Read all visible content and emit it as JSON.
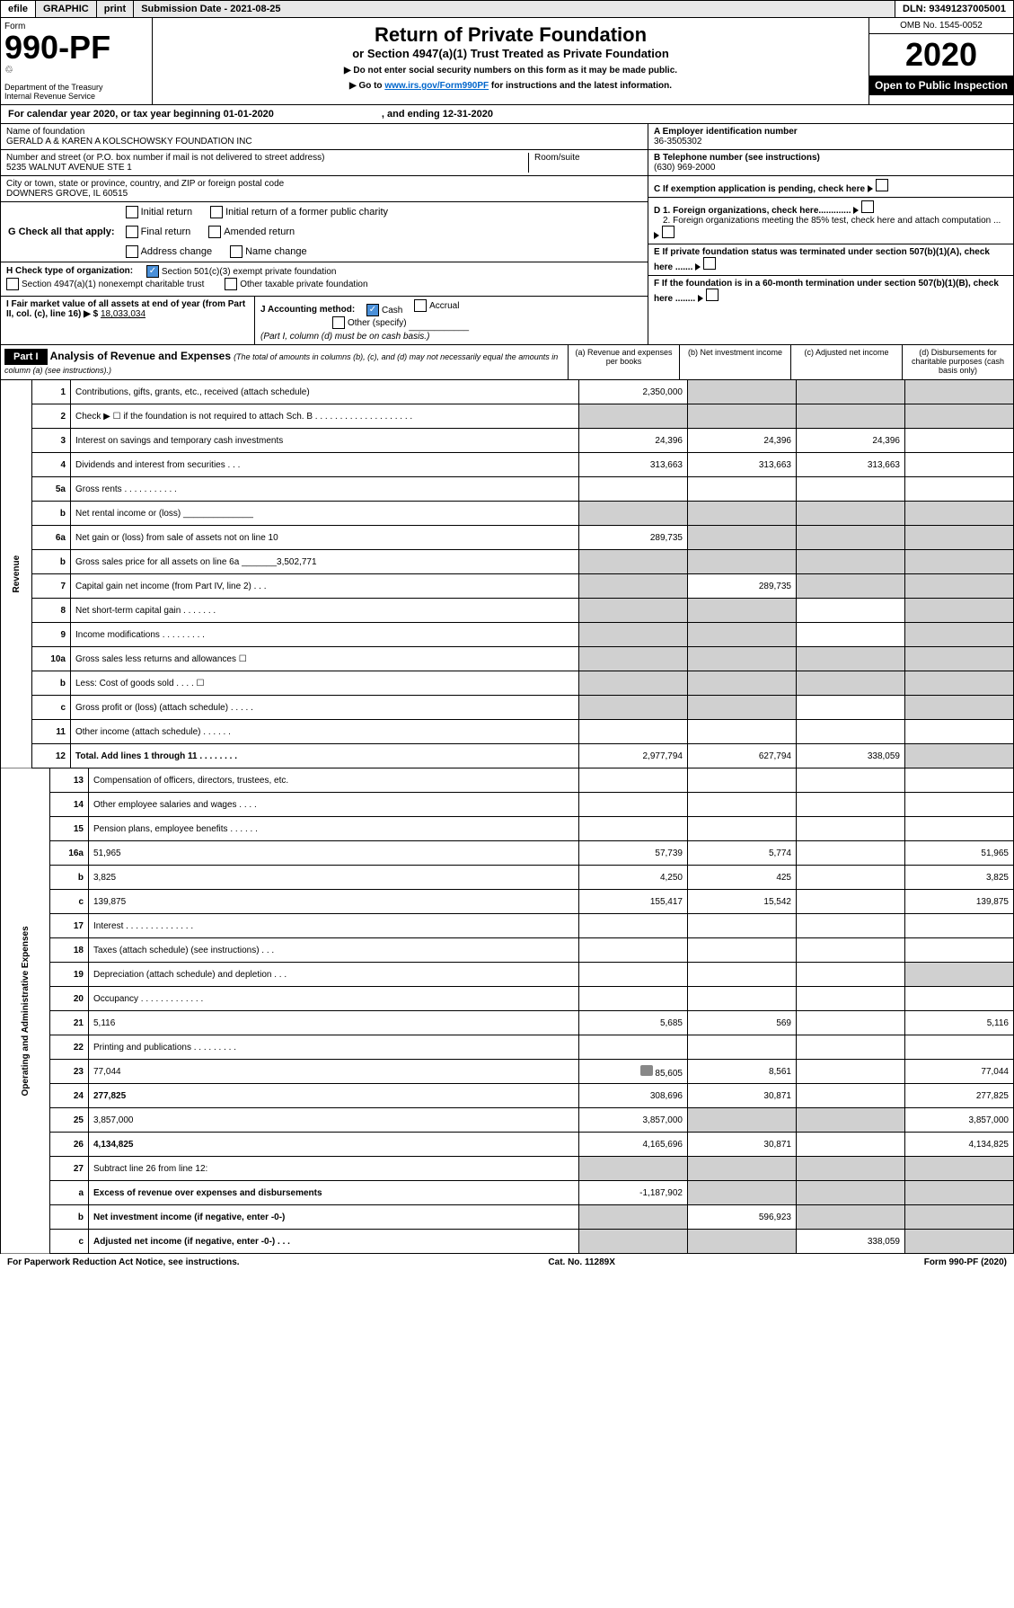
{
  "topbar": {
    "efile": "efile",
    "graphic": "GRAPHIC",
    "print": "print",
    "subdate": "Submission Date - 2021-08-25",
    "dln": "DLN: 93491237005001"
  },
  "header": {
    "form_label": "Form",
    "form_num": "990-PF",
    "dept": "Department of the Treasury\nInternal Revenue Service",
    "title": "Return of Private Foundation",
    "subtitle": "or Section 4947(a)(1) Trust Treated as Private Foundation",
    "note1": "▶ Do not enter social security numbers on this form as it may be made public.",
    "note2": "▶ Go to ",
    "link": "www.irs.gov/Form990PF",
    "note3": " for instructions and the latest information.",
    "omb": "OMB No. 1545-0052",
    "year": "2020",
    "open": "Open to Public Inspection"
  },
  "cal": {
    "a": "For calendar year 2020, or tax year beginning 01-01-2020",
    "b": ", and ending 12-31-2020"
  },
  "info": {
    "name_label": "Name of foundation",
    "name": "GERALD A & KAREN A KOLSCHOWSKY FOUNDATION INC",
    "addr_label": "Number and street (or P.O. box number if mail is not delivered to street address)",
    "room": "Room/suite",
    "addr": "5235 WALNUT AVENUE STE 1",
    "city_label": "City or town, state or province, country, and ZIP or foreign postal code",
    "city": "DOWNERS GROVE, IL  60515",
    "a_label": "A Employer identification number",
    "a_val": "36-3505302",
    "b_label": "B Telephone number (see instructions)",
    "b_val": "(630) 969-2000",
    "c_label": "C If exemption application is pending, check here",
    "d1": "D 1. Foreign organizations, check here.............",
    "d2": "2. Foreign organizations meeting the 85% test, check here and attach computation ...",
    "e": "E  If private foundation status was terminated under section 507(b)(1)(A), check here .......",
    "f": "F  If the foundation is in a 60-month termination under section 507(b)(1)(B), check here ........"
  },
  "g": {
    "label": "G Check all that apply:",
    "opts": [
      "Initial return",
      "Initial return of a former public charity",
      "Final return",
      "Amended return",
      "Address change",
      "Name change"
    ]
  },
  "h": {
    "label": "H Check type of organization:",
    "o1": "Section 501(c)(3) exempt private foundation",
    "o2": "Section 4947(a)(1) nonexempt charitable trust",
    "o3": "Other taxable private foundation"
  },
  "i": {
    "label": "I Fair market value of all assets at end of year (from Part II, col. (c), line 16) ▶ $",
    "val": "18,033,034"
  },
  "j": {
    "label": "J Accounting method:",
    "o1": "Cash",
    "o2": "Accrual",
    "o3": "Other (specify)",
    "note": "(Part I, column (d) must be on cash basis.)"
  },
  "part": {
    "num": "Part I",
    "title": "Analysis of Revenue and Expenses",
    "sub": "(The total of amounts in columns (b), (c), and (d) may not necessarily equal the amounts in column (a) (see instructions).)",
    "ca": "(a)   Revenue and expenses per books",
    "cb": "(b)  Net investment income",
    "cc": "(c)  Adjusted net income",
    "cd": "(d)  Disbursements for charitable purposes (cash basis only)"
  },
  "rows": [
    {
      "n": "1",
      "d": "Contributions, gifts, grants, etc., received (attach schedule)",
      "a": "2,350,000",
      "grey_bcd": true
    },
    {
      "n": "2",
      "d": "Check ▶ ☐ if the foundation is not required to attach Sch. B  . . . . . . . . . . . . . . . . . . . .",
      "grey_abcd": true,
      "italic_not": true
    },
    {
      "n": "3",
      "d": "Interest on savings and temporary cash investments",
      "a": "24,396",
      "b": "24,396",
      "c": "24,396"
    },
    {
      "n": "4",
      "d": "Dividends and interest from securities  .   .   .",
      "a": "313,663",
      "b": "313,663",
      "c": "313,663"
    },
    {
      "n": "5a",
      "d": "Gross rents   .   .   .   .   .   .   .   .   .   .   ."
    },
    {
      "n": "b",
      "d": "Net rental income or (loss)  ______________",
      "grey_abcd": true
    },
    {
      "n": "6a",
      "d": "Net gain or (loss) from sale of assets not on line 10",
      "a": "289,735",
      "grey_bcd": true
    },
    {
      "n": "b",
      "d": "Gross sales price for all assets on line 6a _______3,502,771",
      "grey_abcd": true
    },
    {
      "n": "7",
      "d": "Capital gain net income (from Part IV, line 2)  .   .   .",
      "b": "289,735",
      "grey_a": true,
      "grey_cd": true
    },
    {
      "n": "8",
      "d": "Net short-term capital gain  .   .   .   .   .   .   .",
      "grey_ab": true,
      "grey_d": true
    },
    {
      "n": "9",
      "d": "Income modifications  .   .   .   .   .   .   .   .   .",
      "grey_ab": true,
      "grey_d": true
    },
    {
      "n": "10a",
      "d": "Gross sales less returns and allowances  ☐",
      "grey_abcd": true
    },
    {
      "n": "b",
      "d": "Less: Cost of goods sold    .   .   .   .  ☐",
      "grey_abcd": true
    },
    {
      "n": "c",
      "d": "Gross profit or (loss) (attach schedule)  .   .   .   .   .",
      "grey_ab": true,
      "grey_d": true
    },
    {
      "n": "11",
      "d": "Other income (attach schedule)   .   .   .   .   .   ."
    },
    {
      "n": "12",
      "d": "Total. Add lines 1 through 11   .   .   .   .   .   .   .   .",
      "bold": true,
      "a": "2,977,794",
      "b": "627,794",
      "c": "338,059",
      "grey_d": true
    }
  ],
  "exp_rows": [
    {
      "n": "13",
      "d": "Compensation of officers, directors, trustees, etc."
    },
    {
      "n": "14",
      "d": "Other employee salaries and wages   .   .   .   ."
    },
    {
      "n": "15",
      "d": "Pension plans, employee benefits   .   .   .   .   .   ."
    },
    {
      "n": "16a",
      "d": "51,965",
      "a": "57,739",
      "b": "5,774"
    },
    {
      "n": "b",
      "d": "3,825",
      "a": "4,250",
      "b": "425"
    },
    {
      "n": "c",
      "d": "139,875",
      "a": "155,417",
      "b": "15,542"
    },
    {
      "n": "17",
      "d": "Interest   .   .   .   .   .   .   .   .   .   .   .   .   .   ."
    },
    {
      "n": "18",
      "d": "Taxes (attach schedule) (see instructions)    .   .   ."
    },
    {
      "n": "19",
      "d": "Depreciation (attach schedule) and depletion    .   .   .",
      "grey_d": true
    },
    {
      "n": "20",
      "d": "Occupancy  .   .   .   .   .   .   .   .   .   .   .   .   ."
    },
    {
      "n": "21",
      "d": "5,116",
      "a": "5,685",
      "b": "569"
    },
    {
      "n": "22",
      "d": "Printing and publications  .   .   .   .   .   .   .   .   ."
    },
    {
      "n": "23",
      "d": "77,044",
      "a": "85,605",
      "b": "8,561",
      "icon": true
    },
    {
      "n": "24",
      "d": "277,825",
      "bold": true,
      "a": "308,696",
      "b": "30,871"
    },
    {
      "n": "25",
      "d": "3,857,000",
      "a": "3,857,000",
      "grey_bc": true
    },
    {
      "n": "26",
      "d": "4,134,825",
      "bold": true,
      "a": "4,165,696",
      "b": "30,871"
    },
    {
      "n": "27",
      "d": "Subtract line 26 from line 12:",
      "grey_abcd": true
    },
    {
      "n": "a",
      "d": "Excess of revenue over expenses and disbursements",
      "bold": true,
      "a": "-1,187,902",
      "grey_bcd": true
    },
    {
      "n": "b",
      "d": "Net investment income (if negative, enter -0-)",
      "bold": true,
      "b": "596,923",
      "grey_a": true,
      "grey_cd": true
    },
    {
      "n": "c",
      "d": "Adjusted net income (if negative, enter -0-)   .   .   .",
      "bold": true,
      "c": "338,059",
      "grey_ab": true,
      "grey_d": true
    }
  ],
  "side": {
    "rev": "Revenue",
    "exp": "Operating and Administrative Expenses"
  },
  "footer": {
    "a": "For Paperwork Reduction Act Notice, see instructions.",
    "b": "Cat. No. 11289X",
    "c": "Form 990-PF (2020)"
  }
}
